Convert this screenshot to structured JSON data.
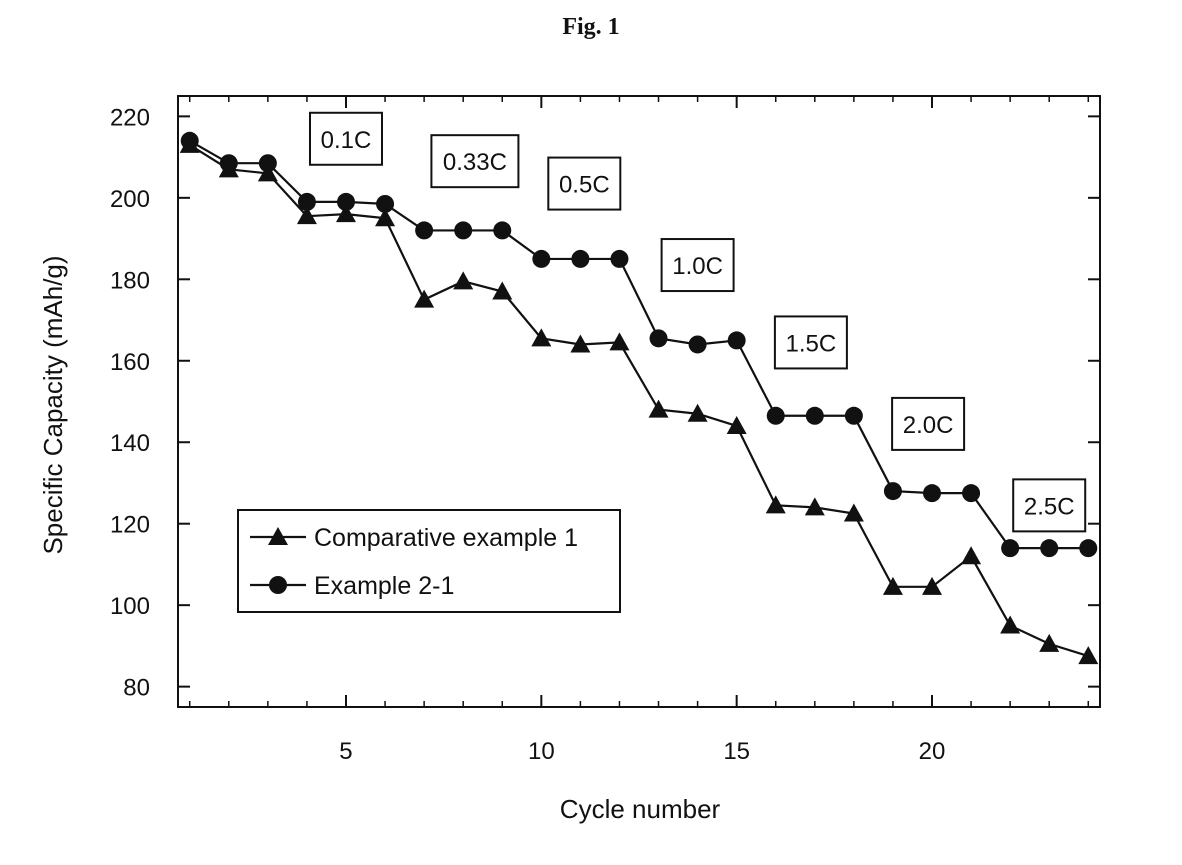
{
  "figure_title": "Fig. 1",
  "chart_data": {
    "type": "line",
    "title": "Fig. 1",
    "xlabel": "Cycle number",
    "ylabel": "Specific Capacity (mAh/g)",
    "xlim": [
      0.7,
      24.3
    ],
    "ylim": [
      75,
      225
    ],
    "xticks": [
      5,
      10,
      15,
      20
    ],
    "yticks": [
      80,
      100,
      120,
      140,
      160,
      180,
      200,
      220
    ],
    "grid": false,
    "legend_position": "lower-left",
    "x": [
      1,
      2,
      3,
      4,
      5,
      6,
      7,
      8,
      9,
      10,
      11,
      12,
      13,
      14,
      15,
      16,
      17,
      18,
      19,
      20,
      21,
      22,
      23,
      24
    ],
    "series": [
      {
        "name": "Comparative example 1",
        "marker": "triangle",
        "values": [
          213,
          207,
          206,
          195.5,
          196,
          195,
          175,
          179.5,
          177,
          165.5,
          164,
          164.5,
          148,
          147,
          144,
          124.5,
          124,
          122.5,
          104.5,
          104.5,
          112,
          95,
          90.5,
          87.5
        ]
      },
      {
        "name": "Example 2-1",
        "marker": "circle",
        "values": [
          214,
          208.5,
          208.5,
          199,
          199,
          198.5,
          192,
          192,
          192,
          185,
          185,
          185,
          165.5,
          164,
          165,
          146.5,
          146.5,
          146.5,
          128,
          127.5,
          127.5,
          114,
          114,
          114
        ]
      }
    ],
    "annotations": [
      {
        "text": "0.1C",
        "x": 5.0,
        "y": 214.5
      },
      {
        "text": "0.33C",
        "x": 8.3,
        "y": 209.0
      },
      {
        "text": "0.5C",
        "x": 11.1,
        "y": 203.5
      },
      {
        "text": "1.0C",
        "x": 14.0,
        "y": 183.5
      },
      {
        "text": "1.5C",
        "x": 16.9,
        "y": 164.5
      },
      {
        "text": "2.0C",
        "x": 19.9,
        "y": 144.5
      },
      {
        "text": "2.5C",
        "x": 23.0,
        "y": 124.5
      }
    ]
  }
}
